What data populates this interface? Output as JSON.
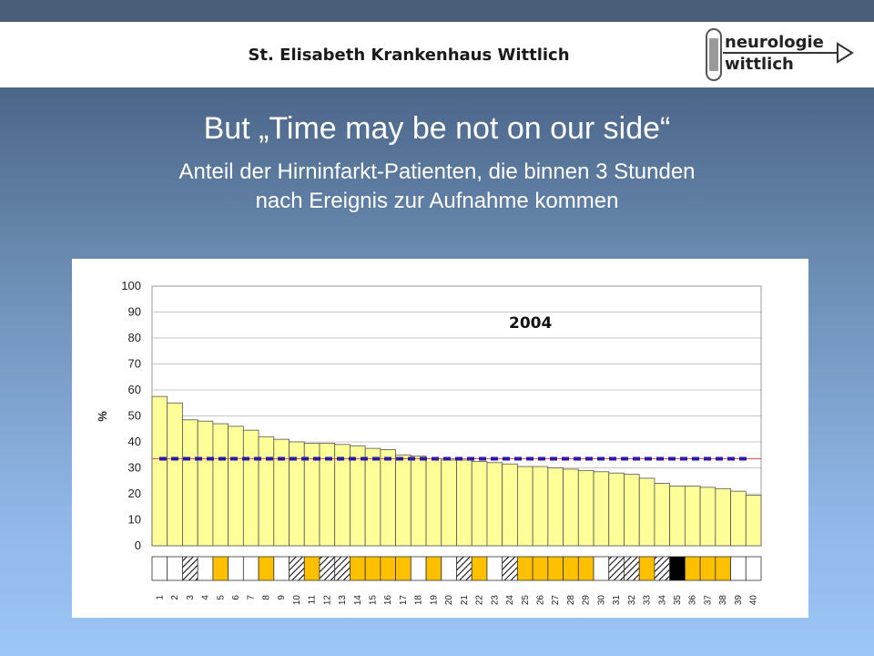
{
  "header": {
    "hospital": "St. Elisabeth Krankenhaus Wittlich",
    "logo_line1": "neurologie",
    "logo_line2": "wittlich"
  },
  "slide": {
    "title": "But „Time may be not on our side“",
    "subtitle_line1": "Anteil der Hirninfarkt-Patienten, die binnen 3 Stunden",
    "subtitle_line2": "nach Ereignis zur Aufnahme kommen"
  },
  "chart_data": {
    "type": "bar",
    "annotation": "2004",
    "ylabel": "%",
    "ylim": [
      0,
      100
    ],
    "yticks": [
      0,
      10,
      20,
      30,
      40,
      50,
      60,
      70,
      80,
      90,
      100
    ],
    "categories": [
      "1",
      "2",
      "3",
      "4",
      "5",
      "6",
      "7",
      "8",
      "9",
      "10",
      "11",
      "12",
      "13",
      "14",
      "15",
      "16",
      "17",
      "18",
      "19",
      "20",
      "21",
      "22",
      "23",
      "24",
      "25",
      "26",
      "27",
      "28",
      "29",
      "30",
      "31",
      "32",
      "33",
      "34",
      "35",
      "36",
      "37",
      "38",
      "39",
      "40"
    ],
    "values": [
      57.5,
      55,
      48.5,
      48,
      47,
      46,
      44.5,
      42,
      41,
      40,
      39.5,
      39.5,
      39,
      38.5,
      37.5,
      37,
      35,
      34.5,
      33.5,
      33,
      33,
      32.5,
      32,
      31.5,
      30.5,
      30.5,
      30,
      29.5,
      29,
      28.5,
      28,
      27.5,
      26,
      24,
      23,
      23,
      22.5,
      22,
      21,
      19.5
    ],
    "mean_line": 33.5,
    "bar_color": "#ffff99",
    "mean_line_color": "#2b1aa8",
    "category_markers": [
      "white",
      "white",
      "hatched",
      "white",
      "orange",
      "white",
      "white",
      "orange",
      "white",
      "hatched",
      "orange",
      "hatched",
      "hatched",
      "orange",
      "orange",
      "orange",
      "orange",
      "white",
      "orange",
      "white",
      "hatched",
      "orange",
      "white",
      "hatched",
      "orange",
      "orange",
      "orange",
      "orange",
      "orange",
      "white",
      "hatched",
      "hatched",
      "orange",
      "hatched",
      "black",
      "orange",
      "orange",
      "orange",
      "white",
      "white"
    ],
    "marker_colors": {
      "white": "#ffffff",
      "orange": "#ffc000",
      "black": "#000000"
    },
    "grid": true
  }
}
